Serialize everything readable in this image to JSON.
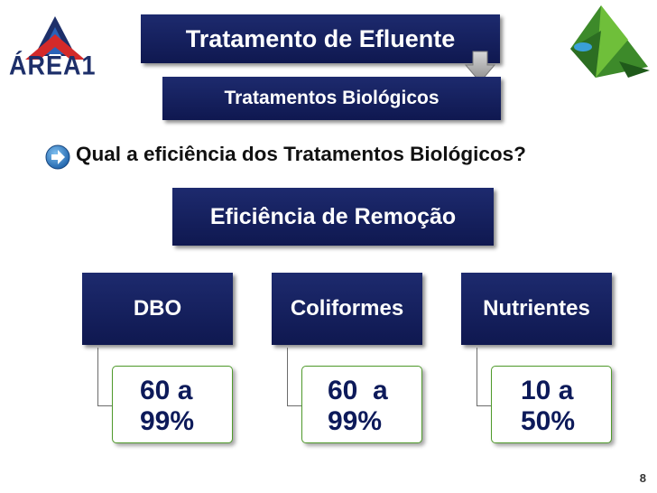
{
  "slide": {
    "title": "Tratamento de Efluente",
    "subtitle": "Tratamentos Biológicos",
    "question": "Qual a eficiência dos Tratamentos Biológicos?",
    "heading": "Eficiência de Remoção",
    "categories": [
      {
        "label": "DBO",
        "value_line1": "60 a",
        "value_line2": "99%"
      },
      {
        "label": "Coliformes",
        "value_line1": "60  a",
        "value_line2": "99%"
      },
      {
        "label": "Nutrientes",
        "value_line1": "10 a",
        "value_line2": "50%"
      }
    ],
    "page_number": "8"
  },
  "logos": {
    "left_text": "ÁREA1"
  },
  "colors": {
    "box_navy": "#13205e",
    "value_border": "#4f9a2b",
    "value_text": "#0d1a5a"
  }
}
